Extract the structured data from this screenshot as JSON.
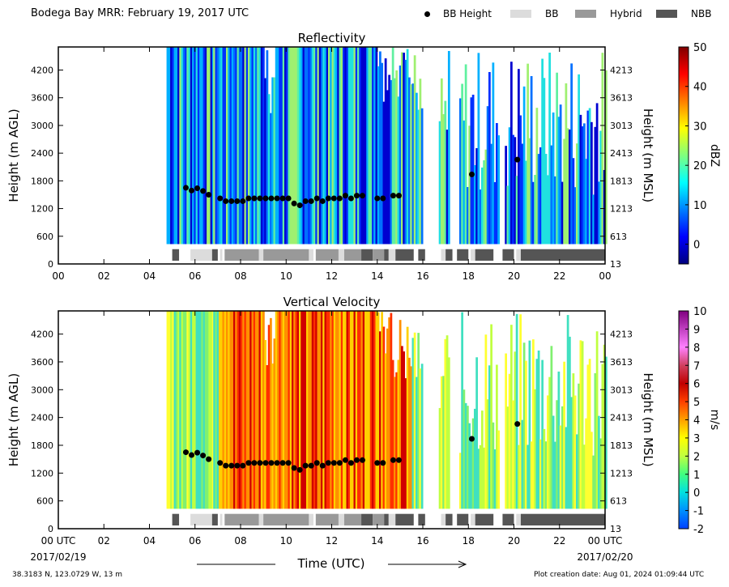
{
  "title": "Bodega Bay MRR:  February 19, 2017 UTC",
  "legend": [
    {
      "label": "BB Height",
      "kind": "dot",
      "color": "#000000"
    },
    {
      "label": "BB",
      "kind": "box",
      "color": "#dcdcdc"
    },
    {
      "label": "Hybrid",
      "kind": "box",
      "color": "#999999"
    },
    {
      "label": "NBB",
      "kind": "box",
      "color": "#555555"
    }
  ],
  "xaxis": {
    "ticks": [
      "00",
      "02",
      "04",
      "06",
      "08",
      "10",
      "12",
      "14",
      "16",
      "18",
      "20",
      "22",
      "00"
    ],
    "bottom_ticks": [
      "00 UTC",
      "02",
      "04",
      "06",
      "08",
      "10",
      "12",
      "14",
      "16",
      "18",
      "20",
      "22",
      "00 UTC"
    ],
    "start_date": "2017/02/19",
    "end_date": "2017/02/20",
    "label": "Time (UTC)"
  },
  "footer": {
    "location": "38.3183 N, 123.0729 W, 13 m",
    "creation": "Plot creation date: Aug 01, 2024 01:09:44 UTC"
  },
  "colors": {
    "bb": "#dcdcdc",
    "hybrid": "#999999",
    "nbb": "#555555",
    "dot": "#000000"
  },
  "chart_data": [
    {
      "type": "heatmap",
      "title": "Reflectivity",
      "ylabel": "Height (m AGL)",
      "ylabel_right": "Height (m MSL)",
      "yticks": [
        0,
        600,
        1200,
        1800,
        2400,
        3000,
        3600,
        4200
      ],
      "yticks_right": [
        "13",
        "613",
        "1213",
        "1813",
        "2413",
        "3013",
        "3613",
        "4213"
      ],
      "ylim": [
        0,
        4700
      ],
      "xlim_hours": [
        0,
        24
      ],
      "colorbar": {
        "label": "dBZ",
        "min": -5,
        "max": 50,
        "ticks": [
          0,
          10,
          20,
          30,
          40,
          50
        ],
        "colors": [
          "#00007f",
          "#0000ff",
          "#007fff",
          "#00ffff",
          "#7fff7f",
          "#ffff00",
          "#ff7f00",
          "#ff0000",
          "#7f0000"
        ]
      }
    },
    {
      "type": "heatmap",
      "title": "Vertical Velocity",
      "ylabel": "Height (m AGL)",
      "ylabel_right": "Height (m MSL)",
      "yticks": [
        0,
        600,
        1200,
        1800,
        2400,
        3000,
        3600,
        4200
      ],
      "yticks_right": [
        "13",
        "613",
        "1213",
        "1813",
        "2413",
        "3013",
        "3613",
        "4213"
      ],
      "ylim": [
        0,
        4700
      ],
      "xlim_hours": [
        0,
        24
      ],
      "colorbar": {
        "label": "m/s",
        "min": -2,
        "max": 10,
        "ticks": [
          -2,
          -1,
          0,
          1,
          2,
          3,
          4,
          5,
          6,
          7,
          8,
          9,
          10
        ],
        "colors": [
          "#0040ff",
          "#0090ff",
          "#00e0e0",
          "#40ff80",
          "#c0ff40",
          "#ffff00",
          "#ffa000",
          "#ff4000",
          "#c00000",
          "#d04060",
          "#ff80ff",
          "#c040c0",
          "#800080"
        ]
      }
    },
    {
      "type": "scatter",
      "name": "BB Height",
      "points": [
        [
          5.6,
          1650
        ],
        [
          5.85,
          1590
        ],
        [
          6.1,
          1640
        ],
        [
          6.35,
          1580
        ],
        [
          6.6,
          1500
        ],
        [
          7.1,
          1420
        ],
        [
          7.35,
          1360
        ],
        [
          7.6,
          1360
        ],
        [
          7.85,
          1360
        ],
        [
          8.1,
          1360
        ],
        [
          8.35,
          1420
        ],
        [
          8.6,
          1420
        ],
        [
          8.85,
          1420
        ],
        [
          9.1,
          1420
        ],
        [
          9.35,
          1420
        ],
        [
          9.6,
          1420
        ],
        [
          9.85,
          1420
        ],
        [
          10.1,
          1420
        ],
        [
          10.35,
          1310
        ],
        [
          10.6,
          1270
        ],
        [
          10.85,
          1360
        ],
        [
          11.1,
          1360
        ],
        [
          11.35,
          1420
        ],
        [
          11.6,
          1360
        ],
        [
          11.85,
          1420
        ],
        [
          12.1,
          1420
        ],
        [
          12.35,
          1420
        ],
        [
          12.6,
          1480
        ],
        [
          12.85,
          1420
        ],
        [
          13.1,
          1480
        ],
        [
          13.35,
          1480
        ],
        [
          14.0,
          1420
        ],
        [
          14.25,
          1420
        ],
        [
          14.7,
          1480
        ],
        [
          14.95,
          1480
        ],
        [
          18.15,
          1940
        ],
        [
          20.15,
          2260
        ]
      ]
    },
    {
      "type": "bar",
      "name": "BB classification",
      "segments": [
        [
          5.0,
          5.3,
          "nbb"
        ],
        [
          5.8,
          6.75,
          "bb"
        ],
        [
          6.75,
          7.0,
          "nbb"
        ],
        [
          7.1,
          7.2,
          "bb"
        ],
        [
          7.3,
          8.8,
          "hybrid"
        ],
        [
          8.8,
          9.0,
          "bb"
        ],
        [
          9.0,
          11.0,
          "hybrid"
        ],
        [
          11.0,
          11.2,
          "bb"
        ],
        [
          11.3,
          12.3,
          "hybrid"
        ],
        [
          12.3,
          12.55,
          "bb"
        ],
        [
          12.55,
          13.3,
          "hybrid"
        ],
        [
          13.3,
          13.8,
          "nbb"
        ],
        [
          13.8,
          14.3,
          "hybrid"
        ],
        [
          14.3,
          14.5,
          "nbb"
        ],
        [
          14.5,
          14.8,
          "bb"
        ],
        [
          14.8,
          15.6,
          "nbb"
        ],
        [
          15.8,
          16.1,
          "nbb"
        ],
        [
          16.8,
          17.0,
          "bb"
        ],
        [
          17.0,
          17.3,
          "nbb"
        ],
        [
          17.5,
          18.0,
          "nbb"
        ],
        [
          18.1,
          18.3,
          "bb"
        ],
        [
          18.3,
          19.1,
          "nbb"
        ],
        [
          19.5,
          20.0,
          "nbb"
        ],
        [
          20.1,
          20.3,
          "bb"
        ],
        [
          20.3,
          24.0,
          "nbb"
        ]
      ]
    }
  ]
}
